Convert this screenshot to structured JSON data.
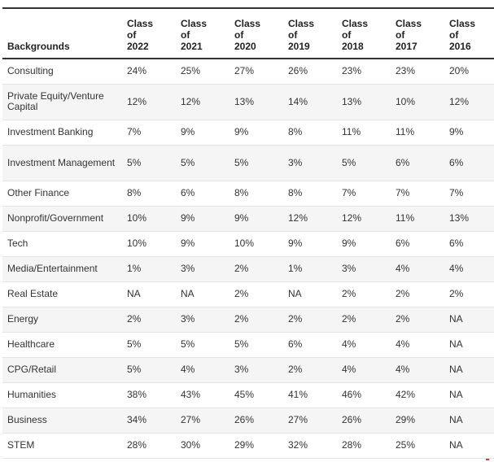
{
  "table": {
    "header": {
      "backgrounds": "Backgrounds",
      "years": [
        {
          "line1": "Class",
          "line2": "of",
          "line3": "2022"
        },
        {
          "line1": "Class",
          "line2": "of",
          "line3": "2021"
        },
        {
          "line1": "Class",
          "line2": "of",
          "line3": "2020"
        },
        {
          "line1": "Class",
          "line2": "of",
          "line3": "2019"
        },
        {
          "line1": "Class",
          "line2": "of",
          "line3": "2018"
        },
        {
          "line1": "Class",
          "line2": "of",
          "line3": "2017"
        },
        {
          "line1": "Class",
          "line2": "of",
          "line3": "2016"
        }
      ]
    },
    "rows": [
      {
        "label": "Consulting",
        "values": [
          "24%",
          "25%",
          "27%",
          "26%",
          "23%",
          "23%",
          "20%"
        ]
      },
      {
        "label": "Private Equity/Venture Capital",
        "values": [
          "12%",
          "12%",
          "13%",
          "14%",
          "13%",
          "10%",
          "12%"
        ]
      },
      {
        "label": "Investment Banking",
        "values": [
          "7%",
          "9%",
          "9%",
          "8%",
          "11%",
          "11%",
          "9%"
        ]
      },
      {
        "label": "Investment Management",
        "values": [
          "5%",
          "5%",
          "5%",
          "3%",
          "5%",
          "6%",
          "6%"
        ]
      },
      {
        "label": "Other Finance",
        "values": [
          "8%",
          "6%",
          "8%",
          "8%",
          "7%",
          "7%",
          "7%"
        ]
      },
      {
        "label": "Nonprofit/Government",
        "values": [
          "10%",
          "9%",
          "9%",
          "12%",
          "12%",
          "11%",
          "13%"
        ]
      },
      {
        "label": "Tech",
        "values": [
          "10%",
          "9%",
          "10%",
          "9%",
          "9%",
          "6%",
          "6%"
        ]
      },
      {
        "label": "Media/Entertainment",
        "values": [
          "1%",
          "3%",
          "2%",
          "1%",
          "3%",
          "4%",
          "4%"
        ]
      },
      {
        "label": "Real Estate",
        "values": [
          "NA",
          "NA",
          "2%",
          "NA",
          "2%",
          "2%",
          "2%"
        ]
      },
      {
        "label": "Energy",
        "values": [
          "2%",
          "3%",
          "2%",
          "2%",
          "2%",
          "2%",
          "NA"
        ]
      },
      {
        "label": "Healthcare",
        "values": [
          "5%",
          "5%",
          "5%",
          "6%",
          "4%",
          "4%",
          "NA"
        ]
      },
      {
        "label": "CPG/Retail",
        "values": [
          "5%",
          "4%",
          "3%",
          "2%",
          "4%",
          "4%",
          "NA"
        ]
      },
      {
        "label": "Humanities",
        "values": [
          "38%",
          "43%",
          "45%",
          "41%",
          "46%",
          "42%",
          "NA"
        ]
      },
      {
        "label": "Business",
        "values": [
          "34%",
          "27%",
          "26%",
          "27%",
          "26%",
          "29%",
          "NA"
        ]
      },
      {
        "label": "STEM",
        "values": [
          "28%",
          "30%",
          "29%",
          "32%",
          "28%",
          "25%",
          "NA"
        ]
      }
    ]
  }
}
